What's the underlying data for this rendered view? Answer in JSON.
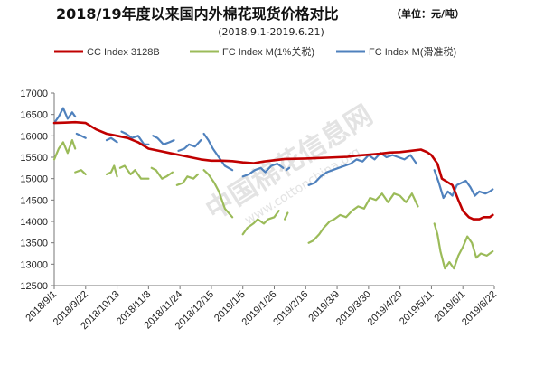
{
  "chart_data": {
    "type": "line",
    "title": "2018/19年度以来国内外棉花现货价格对比",
    "unit_note": "（单位：元/吨）",
    "subtitle": "(2018.9.1-2019.6.21)",
    "watermark": "中国棉花信息网",
    "watermark_url": "www.cottonchina.org",
    "ylim": [
      12500,
      17000
    ],
    "yticks": [
      12500,
      13000,
      13500,
      14000,
      14500,
      15000,
      15500,
      16000,
      16500,
      17000
    ],
    "xticks": [
      "2018/9/1",
      "2018/9/22",
      "2018/10/13",
      "2018/11/3",
      "2018/11/24",
      "2018/12/15",
      "2019/1/5",
      "2019/1/26",
      "2019/2/16",
      "2019/3/9",
      "2019/3/30",
      "2019/4/20",
      "2019/5/11",
      "2019/6/1",
      "2019/6/22"
    ],
    "x_start": "2018/9/1",
    "x_end": "2019/6/22",
    "legend_position": "top",
    "series": [
      {
        "name": "CC Index 3128B",
        "color": "#C00000",
        "points": [
          [
            "2018/9/1",
            16300
          ],
          [
            "2018/9/8",
            16310
          ],
          [
            "2018/9/15",
            16320
          ],
          [
            "2018/9/22",
            16300
          ],
          [
            "2018/9/29",
            16150
          ],
          [
            "2018/10/6",
            16050
          ],
          [
            "2018/10/13",
            16000
          ],
          [
            "2018/10/20",
            15950
          ],
          [
            "2018/10/27",
            15850
          ],
          [
            "2018/11/3",
            15700
          ],
          [
            "2018/11/10",
            15650
          ],
          [
            "2018/11/17",
            15600
          ],
          [
            "2018/11/24",
            15550
          ],
          [
            "2018/12/1",
            15500
          ],
          [
            "2018/12/8",
            15450
          ],
          [
            "2018/12/15",
            15420
          ],
          [
            "2018/12/22",
            15420
          ],
          [
            "2018/12/29",
            15410
          ],
          [
            "2019/1/5",
            15380
          ],
          [
            "2019/1/12",
            15360
          ],
          [
            "2019/1/19",
            15400
          ],
          [
            "2019/1/26",
            15430
          ],
          [
            "2019/2/2",
            15460
          ],
          [
            "2019/2/16",
            15470
          ],
          [
            "2019/2/23",
            15480
          ],
          [
            "2019/3/2",
            15490
          ],
          [
            "2019/3/9",
            15500
          ],
          [
            "2019/3/16",
            15510
          ],
          [
            "2019/3/23",
            15540
          ],
          [
            "2019/3/30",
            15560
          ],
          [
            "2019/4/6",
            15580
          ],
          [
            "2019/4/13",
            15610
          ],
          [
            "2019/4/20",
            15620
          ],
          [
            "2019/4/27",
            15650
          ],
          [
            "2019/5/4",
            15680
          ],
          [
            "2019/5/8",
            15620
          ],
          [
            "2019/5/11",
            15550
          ],
          [
            "2019/5/15",
            15350
          ],
          [
            "2019/5/18",
            15000
          ],
          [
            "2019/5/25",
            14850
          ],
          [
            "2019/5/29",
            14500
          ],
          [
            "2019/6/1",
            14250
          ],
          [
            "2019/6/5",
            14100
          ],
          [
            "2019/6/8",
            14050
          ],
          [
            "2019/6/12",
            14050
          ],
          [
            "2019/6/15",
            14100
          ],
          [
            "2019/6/19",
            14100
          ],
          [
            "2019/6/21",
            14150
          ]
        ]
      },
      {
        "name": "FC Index M(1%关税)",
        "color": "#9BBB59",
        "segments": [
          [
            [
              "2018/9/1",
              15450
            ],
            [
              "2018/9/4",
              15700
            ],
            [
              "2018/9/7",
              15850
            ],
            [
              "2018/9/10",
              15600
            ],
            [
              "2018/9/13",
              15900
            ],
            [
              "2018/9/15",
              15700
            ]
          ],
          [
            [
              "2018/9/15",
              15150
            ],
            [
              "2018/9/19",
              15200
            ],
            [
              "2018/9/22",
              15100
            ]
          ],
          [
            [
              "2018/10/6",
              15100
            ],
            [
              "2018/10/9",
              15150
            ],
            [
              "2018/10/11",
              15300
            ],
            [
              "2018/10/13",
              15050
            ]
          ],
          [
            [
              "2018/10/15",
              15250
            ],
            [
              "2018/10/18",
              15300
            ],
            [
              "2018/10/22",
              15100
            ],
            [
              "2018/10/25",
              15200
            ],
            [
              "2018/10/29",
              15000
            ],
            [
              "2018/11/3",
              15000
            ]
          ],
          [
            [
              "2018/11/5",
              15250
            ],
            [
              "2018/11/8",
              15200
            ],
            [
              "2018/11/12",
              15000
            ],
            [
              "2018/11/15",
              15050
            ],
            [
              "2018/11/19",
              15150
            ]
          ],
          [
            [
              "2018/11/22",
              14850
            ],
            [
              "2018/11/26",
              14900
            ],
            [
              "2018/11/29",
              15050
            ],
            [
              "2018/12/3",
              15000
            ],
            [
              "2018/12/6",
              15100
            ]
          ],
          [
            [
              "2018/12/10",
              15200
            ],
            [
              "2018/12/13",
              15100
            ],
            [
              "2018/12/17",
              14900
            ],
            [
              "2018/12/20",
              14700
            ],
            [
              "2018/12/24",
              14300
            ],
            [
              "2018/12/29",
              14100
            ]
          ],
          [
            [
              "2019/1/5",
              13700
            ],
            [
              "2019/1/8",
              13850
            ],
            [
              "2019/1/12",
              13950
            ],
            [
              "2019/1/15",
              14050
            ],
            [
              "2019/1/19",
              13950
            ],
            [
              "2019/1/22",
              14050
            ],
            [
              "2019/1/26",
              14100
            ],
            [
              "2019/1/29",
              14250
            ]
          ],
          [
            [
              "2019/2/2",
              14050
            ],
            [
              "2019/2/4",
              14200
            ]
          ],
          [
            [
              "2019/2/18",
              13500
            ],
            [
              "2019/2/21",
              13550
            ],
            [
              "2019/2/25",
              13700
            ],
            [
              "2019/2/28",
              13850
            ],
            [
              "2019/3/4",
              14000
            ],
            [
              "2019/3/7",
              14050
            ],
            [
              "2019/3/11",
              14150
            ],
            [
              "2019/3/15",
              14100
            ],
            [
              "2019/3/19",
              14250
            ],
            [
              "2019/3/23",
              14350
            ],
            [
              "2019/3/27",
              14300
            ],
            [
              "2019/3/31",
              14550
            ],
            [
              "2019/4/4",
              14500
            ],
            [
              "2019/4/8",
              14650
            ],
            [
              "2019/4/12",
              14450
            ],
            [
              "2019/4/16",
              14650
            ],
            [
              "2019/4/20",
              14600
            ],
            [
              "2019/4/24",
              14450
            ],
            [
              "2019/4/28",
              14650
            ],
            [
              "2019/5/2",
              14350
            ]
          ],
          [
            [
              "2019/5/13",
              13950
            ],
            [
              "2019/5/15",
              13700
            ],
            [
              "2019/5/17",
              13300
            ],
            [
              "2019/5/20",
              12900
            ],
            [
              "2019/5/23",
              13050
            ],
            [
              "2019/5/26",
              12900
            ],
            [
              "2019/5/29",
              13200
            ],
            [
              "2019/6/1",
              13400
            ],
            [
              "2019/6/4",
              13650
            ],
            [
              "2019/6/7",
              13500
            ],
            [
              "2019/6/10",
              13150
            ],
            [
              "2019/6/13",
              13250
            ],
            [
              "2019/6/17",
              13200
            ],
            [
              "2019/6/21",
              13300
            ]
          ]
        ]
      },
      {
        "name": "FC Index M(滑准税)",
        "color": "#4F81BD",
        "segments": [
          [
            [
              "2018/9/1",
              16300
            ],
            [
              "2018/9/4",
              16450
            ],
            [
              "2018/9/7",
              16650
            ],
            [
              "2018/9/10",
              16400
            ],
            [
              "2018/9/13",
              16550
            ],
            [
              "2018/9/15",
              16450
            ]
          ],
          [
            [
              "2018/9/16",
              16050
            ],
            [
              "2018/9/19",
              16000
            ],
            [
              "2018/9/22",
              15950
            ]
          ],
          [
            [
              "2018/10/6",
              15900
            ],
            [
              "2018/10/9",
              15950
            ],
            [
              "2018/10/13",
              15850
            ]
          ],
          [
            [
              "2018/10/16",
              16100
            ],
            [
              "2018/10/19",
              16050
            ],
            [
              "2018/10/23",
              15950
            ],
            [
              "2018/10/27",
              16000
            ],
            [
              "2018/10/31",
              15800
            ],
            [
              "2018/11/3",
              15800
            ]
          ],
          [
            [
              "2018/11/6",
              16000
            ],
            [
              "2018/11/9",
              15950
            ],
            [
              "2018/11/13",
              15800
            ],
            [
              "2018/11/17",
              15850
            ],
            [
              "2018/11/20",
              15900
            ]
          ],
          [
            [
              "2018/11/23",
              15650
            ],
            [
              "2018/11/27",
              15700
            ],
            [
              "2018/11/30",
              15800
            ],
            [
              "2018/12/4",
              15750
            ],
            [
              "2018/12/8",
              15900
            ]
          ],
          [
            [
              "2018/12/10",
              16050
            ],
            [
              "2018/12/13",
              15900
            ],
            [
              "2018/12/16",
              15700
            ],
            [
              "2018/12/20",
              15500
            ],
            [
              "2018/12/24",
              15300
            ],
            [
              "2018/12/29",
              15200
            ]
          ],
          [
            [
              "2019/1/5",
              15050
            ],
            [
              "2019/1/9",
              15100
            ],
            [
              "2019/1/13",
              15200
            ],
            [
              "2019/1/17",
              15250
            ],
            [
              "2019/1/20",
              15150
            ],
            [
              "2019/1/24",
              15300
            ],
            [
              "2019/1/28",
              15350
            ],
            [
              "2019/2/1",
              15250
            ]
          ],
          [
            [
              "2019/2/3",
              15200
            ],
            [
              "2019/2/5",
              15250
            ]
          ],
          [
            [
              "2019/2/18",
              14850
            ],
            [
              "2019/2/22",
              14900
            ],
            [
              "2019/2/26",
              15050
            ],
            [
              "2019/3/2",
              15150
            ],
            [
              "2019/3/6",
              15200
            ],
            [
              "2019/3/10",
              15250
            ],
            [
              "2019/3/14",
              15300
            ],
            [
              "2019/3/18",
              15350
            ],
            [
              "2019/3/22",
              15450
            ],
            [
              "2019/3/26",
              15400
            ],
            [
              "2019/3/30",
              15550
            ],
            [
              "2019/4/3",
              15450
            ],
            [
              "2019/4/7",
              15600
            ],
            [
              "2019/4/11",
              15500
            ],
            [
              "2019/4/15",
              15550
            ],
            [
              "2019/4/19",
              15500
            ],
            [
              "2019/4/23",
              15450
            ],
            [
              "2019/4/27",
              15550
            ],
            [
              "2019/5/1",
              15350
            ]
          ],
          [
            [
              "2019/5/13",
              15200
            ],
            [
              "2019/5/16",
              14900
            ],
            [
              "2019/5/19",
              14550
            ],
            [
              "2019/5/22",
              14700
            ],
            [
              "2019/5/25",
              14600
            ],
            [
              "2019/5/28",
              14850
            ],
            [
              "2019/5/31",
              14900
            ],
            [
              "2019/6/3",
              14950
            ],
            [
              "2019/6/6",
              14800
            ],
            [
              "2019/6/9",
              14600
            ],
            [
              "2019/6/12",
              14700
            ],
            [
              "2019/6/16",
              14650
            ],
            [
              "2019/6/19",
              14700
            ],
            [
              "2019/6/21",
              14750
            ]
          ]
        ]
      }
    ]
  }
}
